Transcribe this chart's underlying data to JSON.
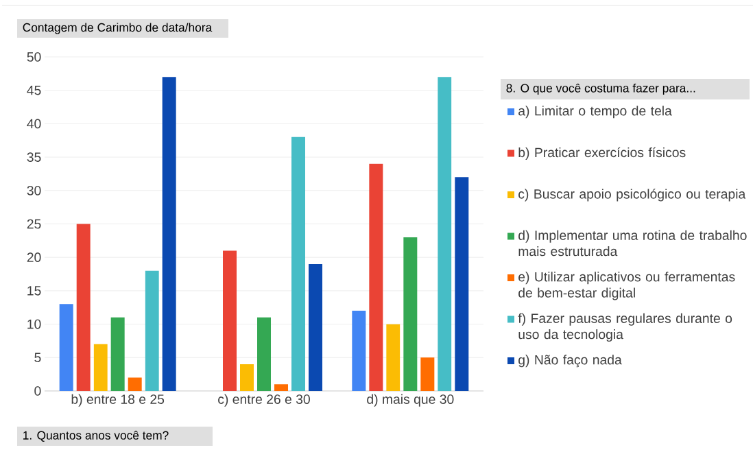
{
  "chart_data": {
    "type": "bar",
    "title": "Contagem de Carimbo de data/hora",
    "xlabel": "1.    Quantos anos você tem?",
    "legend_title": "8.    O que você costuma fazer para...",
    "categories": [
      "b)      entre 18 e 25",
      "c)      entre 26 e 30",
      "d)      mais que 30"
    ],
    "series": [
      {
        "name": "a) Limitar o tempo de tela",
        "color": "#4285f4",
        "values": [
          13,
          null,
          12
        ]
      },
      {
        "name": "b) Praticar exercícios físicos",
        "color": "#ea4335",
        "values": [
          25,
          21,
          34
        ]
      },
      {
        "name": "c) Buscar apoio psicológico ou terapia",
        "color": "#fbbc04",
        "values": [
          7,
          4,
          10
        ]
      },
      {
        "name": "d) Implementar uma rotina de trabalho mais estruturada",
        "color": "#34a853",
        "values": [
          11,
          11,
          23
        ]
      },
      {
        "name": "e) Utilizar aplicativos ou ferramentas de bem-estar digital",
        "color": "#ff6d01",
        "values": [
          2,
          1,
          5
        ]
      },
      {
        "name": "f) Fazer pausas regulares durante o uso da tecnologia",
        "color": "#46bdc6",
        "values": [
          18,
          38,
          47
        ]
      },
      {
        "name": "g) Não faço nada",
        "color": "#0b49b1",
        "values": [
          47,
          19,
          32
        ]
      }
    ],
    "ylim": [
      0,
      50
    ],
    "yticks": [
      0,
      5,
      10,
      15,
      20,
      25,
      30,
      35,
      40,
      45,
      50
    ],
    "grid": "y",
    "legend": "right"
  }
}
